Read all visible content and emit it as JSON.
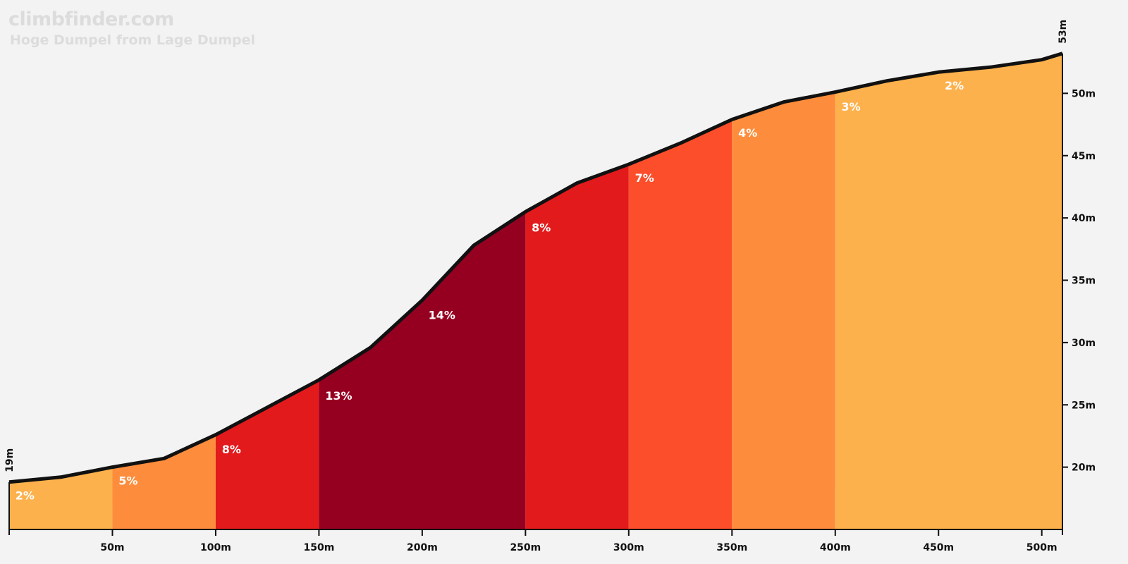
{
  "header": {
    "brand": "climbfinder.com",
    "subtitle": "Hoge Dumpel from Lage Dumpel"
  },
  "chart_data": {
    "type": "area",
    "title": "Hoge Dumpel from Lage Dumpel",
    "xlabel": "",
    "ylabel": "",
    "xlim": [
      0,
      510
    ],
    "ylim": [
      15,
      55
    ],
    "x_ticks": [
      {
        "value": 50,
        "label": "50m"
      },
      {
        "value": 100,
        "label": "100m"
      },
      {
        "value": 150,
        "label": "150m"
      },
      {
        "value": 200,
        "label": "200m"
      },
      {
        "value": 250,
        "label": "250m"
      },
      {
        "value": 300,
        "label": "300m"
      },
      {
        "value": 350,
        "label": "350m"
      },
      {
        "value": 400,
        "label": "400m"
      },
      {
        "value": 450,
        "label": "450m"
      },
      {
        "value": 500,
        "label": "500m"
      }
    ],
    "y_ticks": [
      {
        "value": 20,
        "label": "20m"
      },
      {
        "value": 25,
        "label": "25m"
      },
      {
        "value": 30,
        "label": "30m"
      },
      {
        "value": 35,
        "label": "35m"
      },
      {
        "value": 40,
        "label": "40m"
      },
      {
        "value": 45,
        "label": "45m"
      },
      {
        "value": 50,
        "label": "50m"
      }
    ],
    "start_label": "19m",
    "end_label": "53m",
    "profile": [
      {
        "x": 0,
        "y": 18.8
      },
      {
        "x": 25,
        "y": 19.2
      },
      {
        "x": 50,
        "y": 20.0
      },
      {
        "x": 75,
        "y": 20.7
      },
      {
        "x": 100,
        "y": 22.6
      },
      {
        "x": 125,
        "y": 24.8
      },
      {
        "x": 150,
        "y": 27.0
      },
      {
        "x": 175,
        "y": 29.6
      },
      {
        "x": 200,
        "y": 33.4
      },
      {
        "x": 225,
        "y": 37.8
      },
      {
        "x": 250,
        "y": 40.5
      },
      {
        "x": 275,
        "y": 42.8
      },
      {
        "x": 300,
        "y": 44.3
      },
      {
        "x": 325,
        "y": 46.0
      },
      {
        "x": 350,
        "y": 47.9
      },
      {
        "x": 375,
        "y": 49.3
      },
      {
        "x": 400,
        "y": 50.1
      },
      {
        "x": 425,
        "y": 51.0
      },
      {
        "x": 450,
        "y": 51.7
      },
      {
        "x": 475,
        "y": 52.1
      },
      {
        "x": 500,
        "y": 52.7
      },
      {
        "x": 510,
        "y": 53.2
      }
    ],
    "segments": [
      {
        "start": 0,
        "end": 50,
        "grade": "2%",
        "color": "#fdb14c"
      },
      {
        "start": 50,
        "end": 100,
        "grade": "5%",
        "color": "#fd8d3c"
      },
      {
        "start": 100,
        "end": 150,
        "grade": "8%",
        "color": "#e31a1c"
      },
      {
        "start": 150,
        "end": 250,
        "grade": "14%",
        "color": "#960020"
      },
      {
        "start": 250,
        "end": 300,
        "grade": "8%",
        "color": "#e31a1c"
      },
      {
        "start": 300,
        "end": 350,
        "grade": "7%",
        "color": "#fc4e2a"
      },
      {
        "start": 350,
        "end": 400,
        "grade": "4%",
        "color": "#fd8d3c"
      },
      {
        "start": 400,
        "end": 510,
        "grade": "3%",
        "color": "#fdb14c"
      }
    ],
    "grade_labels": [
      {
        "text": "2%",
        "x": 3,
        "y": 17.4
      },
      {
        "text": "5%",
        "x": 53,
        "y": 18.6
      },
      {
        "text": "8%",
        "x": 103,
        "y": 21.1
      },
      {
        "text": "13%",
        "x": 153,
        "y": 25.4
      },
      {
        "text": "14%",
        "x": 203,
        "y": 31.9
      },
      {
        "text": "8%",
        "x": 253,
        "y": 38.9
      },
      {
        "text": "7%",
        "x": 303,
        "y": 42.9
      },
      {
        "text": "4%",
        "x": 353,
        "y": 46.5
      },
      {
        "text": "3%",
        "x": 403,
        "y": 48.6
      },
      {
        "text": "2%",
        "x": 453,
        "y": 50.3
      }
    ],
    "colors": {
      "background": "#f3f3f3",
      "line": "#111111",
      "axis": "#111111",
      "label": "#ffffff"
    }
  }
}
